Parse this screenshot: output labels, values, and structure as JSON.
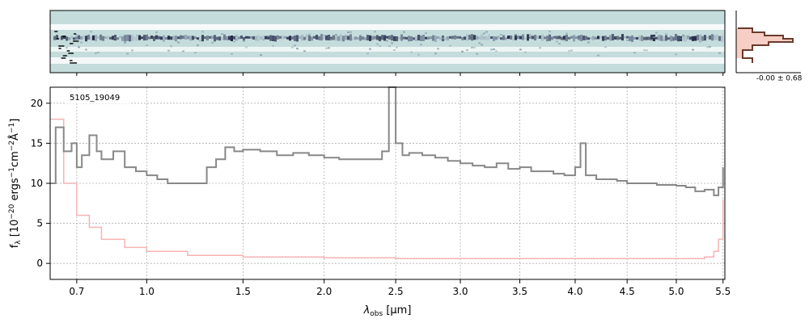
{
  "chart_data": [
    {
      "type": "heatmap",
      "panel": "2d-spectrum",
      "colormap": "bone_r",
      "description_colors": {
        "band": "#c5dcdc",
        "trace": "#1a1f3a"
      }
    },
    {
      "type": "line",
      "panel": "profile",
      "annotation": "-0.00 ± 0.68",
      "colors": {
        "fill": "#f6c9c0",
        "line": "#6b3a2a"
      }
    },
    {
      "type": "line",
      "panel": "1d-spectrum",
      "annotation": "5105_19049",
      "xlabel": "λ_obs [μm]",
      "ylabel": "f_λ [10^-20 ergs^-1cm^-2Å^-1]",
      "xlim": [
        0.6,
        5.52
      ],
      "ylim": [
        -2,
        22
      ],
      "x_scale": "sqrt",
      "grid": true,
      "xticks": [
        "0.7",
        "1.0",
        "1.5",
        "2.0",
        "2.5",
        "3.0",
        "3.5",
        "4.0",
        "4.5",
        "5.0",
        "5.5"
      ],
      "yticks": [
        "0",
        "5",
        "10",
        "15",
        "20"
      ],
      "series": [
        {
          "color": "#888888",
          "x": [
            0.6,
            0.62,
            0.65,
            0.68,
            0.7,
            0.72,
            0.75,
            0.78,
            0.8,
            0.85,
            0.9,
            0.95,
            1.0,
            1.05,
            1.1,
            1.15,
            1.2,
            1.25,
            1.3,
            1.35,
            1.4,
            1.45,
            1.5,
            1.6,
            1.7,
            1.8,
            1.9,
            2.0,
            2.1,
            2.2,
            2.3,
            2.4,
            2.45,
            2.5,
            2.55,
            2.6,
            2.7,
            2.8,
            2.9,
            3.0,
            3.1,
            3.2,
            3.3,
            3.4,
            3.5,
            3.6,
            3.7,
            3.8,
            3.9,
            4.0,
            4.05,
            4.1,
            4.2,
            4.3,
            4.4,
            4.5,
            4.6,
            4.7,
            4.8,
            4.9,
            5.0,
            5.1,
            5.2,
            5.3,
            5.4,
            5.45,
            5.5
          ],
          "y": [
            10,
            17,
            14,
            15,
            12,
            13.5,
            16,
            14,
            13,
            14,
            12,
            11.5,
            11,
            10.5,
            10,
            10,
            10,
            10,
            12,
            13,
            14.5,
            14,
            14.2,
            14,
            13.5,
            13.8,
            13.5,
            13.2,
            13,
            13,
            13,
            14,
            22,
            15,
            13.5,
            13.8,
            13.5,
            13.2,
            12.8,
            12.5,
            12.2,
            12,
            12.5,
            11.8,
            12,
            11.5,
            11.5,
            11.2,
            11,
            12,
            15,
            11,
            10.5,
            10.5,
            10.3,
            10,
            10,
            10,
            9.8,
            9.8,
            9.7,
            9.5,
            9,
            9.2,
            8.5,
            9.5,
            12
          ]
        },
        {
          "color": "#f6b3b3",
          "x": [
            0.6,
            0.65,
            0.7,
            0.75,
            0.8,
            0.9,
            1.0,
            1.2,
            1.5,
            2.0,
            2.5,
            3.0,
            3.5,
            4.0,
            4.5,
            5.0,
            5.3,
            5.4,
            5.45,
            5.5
          ],
          "y": [
            18,
            10,
            6,
            4.5,
            3,
            2,
            1.5,
            1,
            0.8,
            0.7,
            0.6,
            0.6,
            0.6,
            0.6,
            0.6,
            0.6,
            0.8,
            1.5,
            3,
            8
          ]
        }
      ]
    }
  ]
}
